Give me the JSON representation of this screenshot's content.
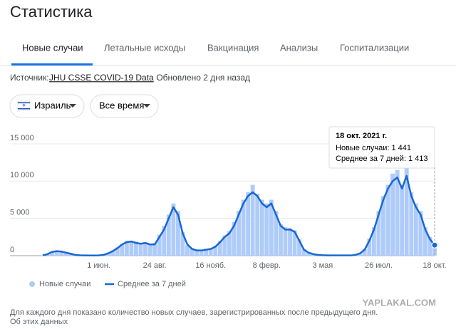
{
  "header": {
    "title": "Статистика"
  },
  "tabs": [
    "Новые случаи",
    "Летальные исходы",
    "Вакцинация",
    "Анализы",
    "Госпитализации"
  ],
  "source": {
    "prefix": "Источник:",
    "link": "JHU CSSE COVID-19 Data",
    "updated": "· Обновлено 2 дня назад"
  },
  "filters": [
    "Израиль",
    "Все время"
  ],
  "chart_data": {
    "type": "bar",
    "categories": [
      null,
      null,
      null,
      null,
      null,
      null,
      null,
      null,
      null,
      null,
      null,
      null,
      "1 июн.",
      null,
      null,
      null,
      null,
      null,
      null,
      null,
      null,
      null,
      null,
      null,
      "24 авг.",
      null,
      null,
      null,
      null,
      null,
      null,
      null,
      null,
      null,
      null,
      null,
      "16 нояб.",
      null,
      null,
      null,
      null,
      null,
      null,
      null,
      null,
      null,
      null,
      null,
      "8 февр.",
      null,
      null,
      null,
      null,
      null,
      null,
      null,
      null,
      null,
      null,
      null,
      "3 мая",
      null,
      null,
      null,
      null,
      null,
      null,
      null,
      null,
      null,
      null,
      null,
      "26 июл.",
      null,
      null,
      null,
      null,
      null,
      null,
      null,
      null,
      null,
      null,
      null,
      "18 окт."
    ],
    "series": [
      {
        "name": "Новые случаи",
        "type": "bar",
        "color": "#aecbfa",
        "values": [
          60,
          250,
          450,
          700,
          500,
          450,
          200,
          120,
          40,
          30,
          20,
          30,
          50,
          150,
          350,
          700,
          1100,
          1600,
          2000,
          1800,
          1900,
          1500,
          1800,
          1600,
          1700,
          2800,
          4000,
          5500,
          7000,
          6000,
          3200,
          1400,
          1000,
          800,
          700,
          900,
          1000,
          1300,
          2000,
          2700,
          3300,
          4500,
          6000,
          7500,
          8500,
          9500,
          8300,
          7500,
          7000,
          7500,
          6000,
          4200,
          3800,
          3700,
          3400,
          2200,
          900,
          450,
          250,
          120,
          70,
          50,
          30,
          40,
          30,
          30,
          40,
          120,
          350,
          900,
          2300,
          3800,
          6000,
          8000,
          9500,
          11000,
          11500,
          9500,
          11700,
          8500,
          7000,
          6000,
          3800,
          2500,
          1441
        ]
      },
      {
        "name": "Среднее за 7 дней",
        "type": "line",
        "color": "#1967d2",
        "values": [
          50,
          200,
          500,
          600,
          550,
          400,
          250,
          100,
          50,
          30,
          20,
          20,
          40,
          100,
          300,
          600,
          1000,
          1500,
          1800,
          1900,
          1700,
          1600,
          1700,
          1500,
          1500,
          2500,
          3500,
          5000,
          6500,
          5500,
          3000,
          1500,
          900,
          700,
          700,
          800,
          900,
          1200,
          1800,
          2500,
          3000,
          4000,
          5500,
          7000,
          8000,
          8500,
          8000,
          7000,
          6500,
          7000,
          5500,
          4000,
          3500,
          3500,
          3200,
          2000,
          800,
          400,
          200,
          100,
          60,
          40,
          30,
          30,
          30,
          30,
          30,
          100,
          300,
          800,
          2000,
          3500,
          5500,
          7500,
          9000,
          10000,
          10500,
          9000,
          10700,
          8000,
          6500,
          5500,
          3500,
          2200,
          1413
        ]
      }
    ],
    "ylim": [
      0,
      15000
    ],
    "yticks": [
      0,
      {
        "value": 5000,
        "label": "5 000"
      },
      {
        "value": 10000,
        "label": "10 000"
      },
      {
        "value": 15000,
        "label": "15 000"
      }
    ],
    "grid": true,
    "tooltip": {
      "title": "18 окт. 2021 г.",
      "lines": [
        "Новые случаи: 1 441",
        "Среднее за 7 дней: 1 413"
      ]
    }
  },
  "footer": [
    "Для каждого дня показано количество новых случаев, зарегистрированных после предыдущего дня.",
    "Об этих данных"
  ],
  "watermark": "YAPLAKAL.COM"
}
